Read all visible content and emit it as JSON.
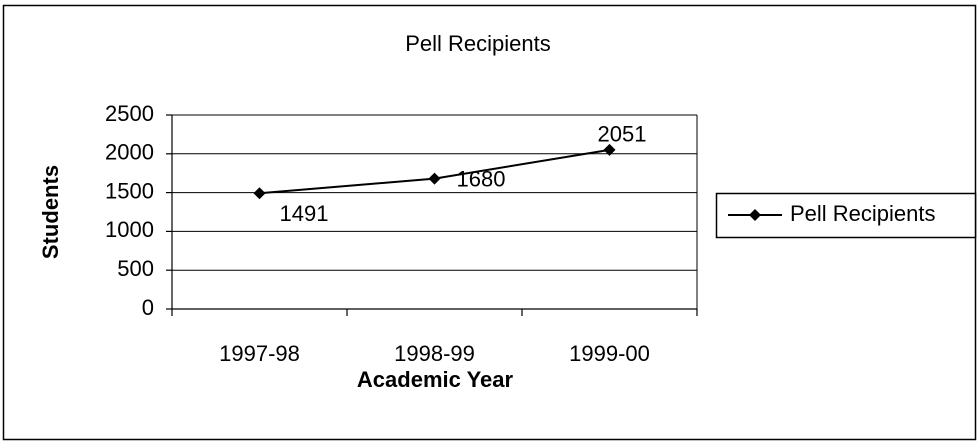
{
  "chart_data": {
    "type": "line",
    "title": "Pell Recipients",
    "xlabel": "Academic Year",
    "ylabel": "Students",
    "categories": [
      "1997-98",
      "1998-99",
      "1999-00"
    ],
    "series": [
      {
        "name": "Pell Recipients",
        "color": "#000000",
        "values": [
          1491,
          1680,
          2051
        ]
      }
    ],
    "ylim": [
      0,
      2500
    ],
    "yticks": [
      0,
      500,
      1000,
      1500,
      2000,
      2500
    ],
    "grid": true,
    "legend": "right"
  }
}
